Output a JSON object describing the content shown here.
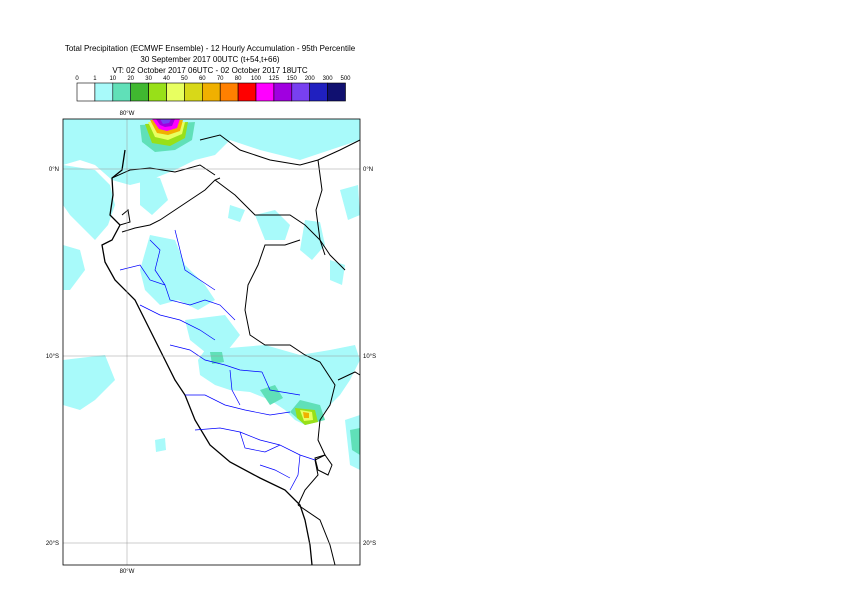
{
  "title": {
    "line1": "Total Precipitation (ECMWF Ensemble) - 12 Hourly Accumulation - 95th Percentile",
    "line2": "30 September 2017 00UTC (t+54,t+66)",
    "line3": "VT: 02 October 2017 06UTC - 02 October 2017 18UTC"
  },
  "legend": {
    "levels": [
      "0",
      "1",
      "10",
      "20",
      "30",
      "40",
      "50",
      "60",
      "70",
      "80",
      "100",
      "125",
      "150",
      "200",
      "300",
      "500"
    ],
    "colors": [
      "#ffffff",
      "#a8fafa",
      "#60e0b8",
      "#40b830",
      "#98e018",
      "#e8ff60",
      "#d8d818",
      "#f0b000",
      "#ff8000",
      "#ff0000",
      "#ff00ff",
      "#a000e0",
      "#7840f0",
      "#2020c0",
      "#101070"
    ]
  },
  "map": {
    "lon_labels": {
      "top": "80°W",
      "bottom": "80°W"
    },
    "lat_labels": [
      {
        "name": "lat-0",
        "left": "0°N",
        "right": "0°N"
      },
      {
        "name": "lat-10s",
        "left": "10°S",
        "right": "10°S"
      },
      {
        "name": "lat-20s",
        "left": "20°S",
        "right": "20°S"
      }
    ]
  }
}
